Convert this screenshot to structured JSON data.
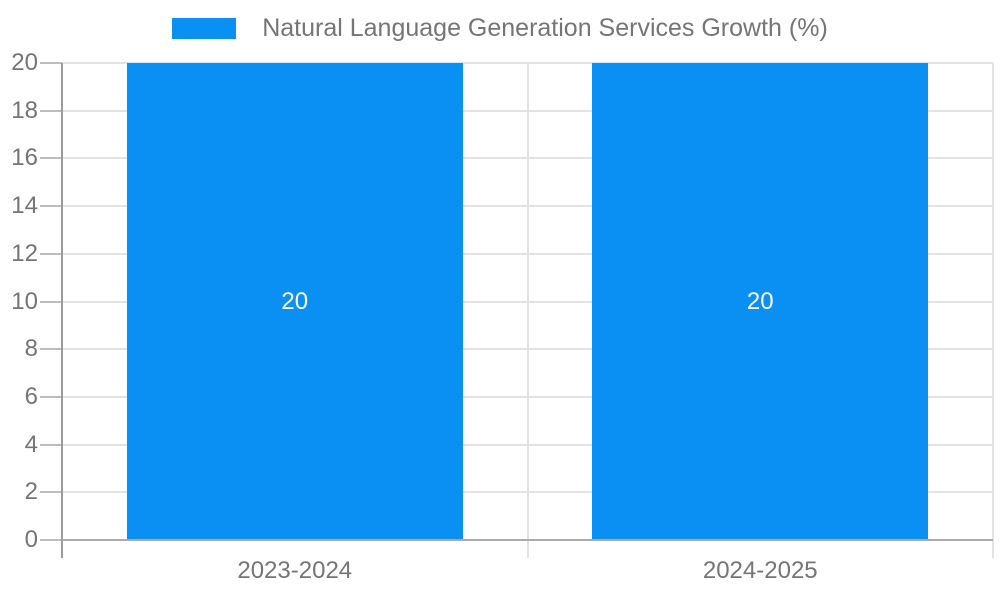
{
  "chart_data": {
    "type": "bar",
    "title": "Natural Language Generation Services Growth (%)",
    "categories": [
      "2023-2024",
      "2024-2025"
    ],
    "series": [
      {
        "name": "Natural Language Generation Services Growth (%)",
        "values": [
          20,
          20
        ]
      }
    ],
    "bar_value_labels": [
      "20",
      "20"
    ],
    "xlabel": "",
    "ylabel": "",
    "ylim": [
      0,
      20
    ],
    "yticks": [
      0,
      2,
      4,
      6,
      8,
      10,
      12,
      14,
      16,
      18,
      20
    ],
    "grid": true,
    "legend_position": "top",
    "colors": {
      "bar": "#0a8ff2",
      "bar_label_text": "#ffffff",
      "axis_text": "#757575",
      "y_axis_line": "#9b9b9b",
      "x_axis_line": "#ababab",
      "gridline": "#e3e3e3",
      "tick_mark": "#bdbdbd",
      "background": "#ffffff"
    }
  }
}
